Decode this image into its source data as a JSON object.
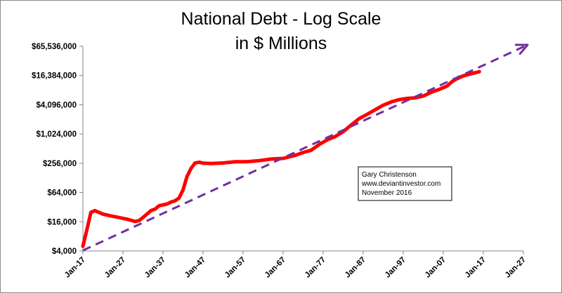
{
  "chart_data": {
    "type": "line",
    "title": "National Debt - Log Scale",
    "subtitle": "in $ Millions",
    "yscale": "log2",
    "ylim": [
      4000,
      65536000
    ],
    "y_ticks": [
      {
        "value": 4000,
        "label": "$4,000"
      },
      {
        "value": 16000,
        "label": "$16,000"
      },
      {
        "value": 64000,
        "label": "$64,000"
      },
      {
        "value": 256000,
        "label": "$256,000"
      },
      {
        "value": 1024000,
        "label": "$1,024,000"
      },
      {
        "value": 4096000,
        "label": "$4,096,000"
      },
      {
        "value": 16384000,
        "label": "$16,384,000"
      },
      {
        "value": 65536000,
        "label": "$65,536,000"
      }
    ],
    "xlim": [
      1917,
      2027
    ],
    "x_ticks": [
      {
        "value": 1917,
        "label": "Jan-17"
      },
      {
        "value": 1927,
        "label": "Jan-27"
      },
      {
        "value": 1937,
        "label": "Jan-37"
      },
      {
        "value": 1947,
        "label": "Jan-47"
      },
      {
        "value": 1957,
        "label": "Jan-57"
      },
      {
        "value": 1967,
        "label": "Jan-67"
      },
      {
        "value": 1977,
        "label": "Jan-77"
      },
      {
        "value": 1987,
        "label": "Jan-87"
      },
      {
        "value": 1997,
        "label": "Jan-97"
      },
      {
        "value": 2007,
        "label": "Jan-07"
      },
      {
        "value": 2017,
        "label": "Jan-17"
      },
      {
        "value": 2027,
        "label": "Jan-27"
      }
    ],
    "series": [
      {
        "name": "National Debt",
        "color": "#ff0000",
        "style": "solid",
        "x": [
          1917,
          1918,
          1919,
          1920,
          1922,
          1924,
          1926,
          1928,
          1930,
          1931,
          1932,
          1934,
          1935,
          1936,
          1938,
          1939,
          1940,
          1941,
          1942,
          1943,
          1944,
          1945,
          1946,
          1947,
          1949,
          1952,
          1955,
          1958,
          1961,
          1964,
          1967,
          1970,
          1972,
          1974,
          1976,
          1978,
          1980,
          1982,
          1984,
          1986,
          1988,
          1990,
          1992,
          1994,
          1996,
          1998,
          2000,
          2002,
          2004,
          2006,
          2008,
          2009,
          2010,
          2012,
          2014,
          2016
        ],
        "y": [
          5000,
          11000,
          25000,
          27000,
          23000,
          21000,
          19500,
          18000,
          16200,
          16800,
          19500,
          27000,
          29000,
          34000,
          37000,
          40500,
          43000,
          49000,
          72000,
          136000,
          200000,
          258000,
          269000,
          257000,
          252000,
          259000,
          274000,
          276000,
          289000,
          312000,
          322000,
          371000,
          427000,
          475000,
          620000,
          772000,
          908000,
          1140000,
          1570000,
          2120000,
          2600000,
          3230000,
          4000000,
          4690000,
          5220000,
          5530000,
          5670000,
          6200000,
          7400000,
          8500000,
          10000000,
          11900000,
          13500000,
          16100000,
          17800000,
          19600000
        ]
      },
      {
        "name": "Trend",
        "color": "#7030a0",
        "style": "dashed",
        "x": [
          1917,
          2027
        ],
        "y": [
          4100,
          65536000
        ]
      }
    ],
    "annotation": [
      "Gary Christenson",
      "www.deviantinvestor.com",
      "November 2016"
    ]
  }
}
